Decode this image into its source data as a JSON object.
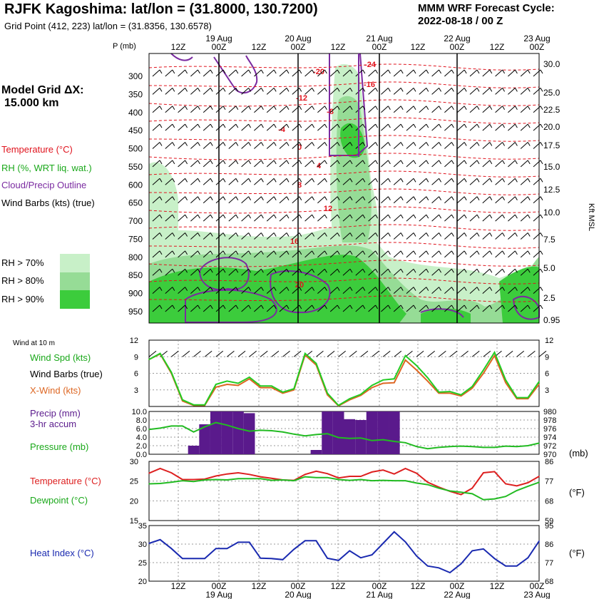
{
  "header": {
    "title": "RJFK Kagoshima:  lat/lon = (31.8000, 130.7200)",
    "subtitle": "Grid Point (412, 223) lat/lon = (31.8356, 130.6578)",
    "cycle_line1": "MMM WRF Forecast Cycle:",
    "cycle_line2": "2022-08-18 / 00  Z"
  },
  "left_panel": {
    "grid_label": "Model Grid ΔX:",
    "grid_value": "15.000 km",
    "legend": {
      "temperature": "Temperature (°C)",
      "rh": "RH (%, WRT liq. wat.)",
      "cloud": "Cloud/Precip Outline",
      "wind": "Wind Barbs (kts) (true)"
    },
    "rh_keys": [
      "RH > 70%",
      "RH > 80%",
      "RH > 90%"
    ],
    "colors": {
      "temperature": "#e0141e",
      "rh": "#1aa81a",
      "cloud": "#7a2aa0",
      "rh70": "#c8f0c8",
      "rh80": "#96dc96",
      "rh90": "#3ccc3c"
    }
  },
  "time_axis": {
    "top_days": [
      "19 Aug",
      "20 Aug",
      "21 Aug",
      "22 Aug",
      "23 Aug"
    ],
    "hours": [
      "12Z",
      "00Z",
      "12Z",
      "00Z",
      "12Z",
      "00Z",
      "12Z",
      "00Z",
      "12Z",
      "00Z"
    ],
    "bottom_days": [
      "19 Aug",
      "20 Aug",
      "21 Aug",
      "22 Aug",
      "23 Aug"
    ]
  },
  "chart_data": [
    {
      "type": "heatmap",
      "name": "upper-air cross section",
      "ylabel_left": "P (mb)",
      "pressure_levels": [
        300,
        350,
        400,
        450,
        500,
        550,
        600,
        650,
        700,
        750,
        800,
        850,
        900,
        950
      ],
      "ylabel_right": "Kft MSL",
      "height_ticks": [
        "30.0",
        "25.0",
        "22.5",
        "20.0",
        "17.5",
        "15.0",
        "12.5",
        "10.0",
        "7.5",
        "5.0",
        "2.5",
        "0.95"
      ],
      "isotherm_labels": [
        "-20",
        "-24",
        "-16",
        "-12",
        "-8",
        "-4",
        "0",
        "4",
        "8",
        "12",
        "16",
        "20"
      ],
      "grid": true
    },
    {
      "type": "line",
      "name": "wind",
      "title": "Wind at 10 m",
      "legend": [
        "Wind Spd (kts)",
        "Wind Barbs (true)",
        "X-Wind (kts)"
      ],
      "ylim": [
        0,
        12
      ],
      "y_ticks": [
        "12",
        "9",
        "6",
        "3"
      ],
      "series": [
        {
          "name": "Wind Spd (kts)",
          "color": "#22cc22",
          "values": [
            8.5,
            9.6,
            6.2,
            1.2,
            0.3,
            0.3,
            4,
            4.6,
            4.2,
            5.3,
            3.7,
            3.7,
            2.6,
            3.2,
            9.6,
            7.8,
            2.4,
            0.2,
            1.4,
            2.2,
            3.8,
            4.8,
            5,
            9.2,
            7.4,
            5.2,
            2.6,
            2.7,
            2.1,
            3.6,
            6.6,
            9.8,
            4.8,
            1.6,
            1.6,
            4.5
          ]
        },
        {
          "name": "X-Wind (kts)",
          "color": "#dd6622",
          "values": [
            8.5,
            9.5,
            6,
            1,
            0.2,
            0.2,
            3.5,
            4,
            3.8,
            5,
            3.4,
            3.4,
            2.4,
            3,
            9.3,
            7.5,
            2.1,
            0.1,
            1.2,
            2,
            3.4,
            4.2,
            4.3,
            8.4,
            6.6,
            4.6,
            2.4,
            2.4,
            1.9,
            3.3,
            6,
            9.2,
            4.3,
            1.4,
            1.4,
            4
          ]
        }
      ]
    },
    {
      "type": "bar",
      "name": "precip and pressure",
      "legend": [
        "Precip (mm)",
        "3-hr accum",
        "Pressure (mb)"
      ],
      "ylim": [
        0,
        10
      ],
      "y_ticks_left": [
        "10.0",
        "8.0",
        "6.0",
        "4.0",
        "2.0",
        "0.0"
      ],
      "y_ticks_right": [
        "980",
        "978",
        "976",
        "974",
        "972",
        "970"
      ],
      "right_unit": "(mb)",
      "precip": [
        0,
        0,
        0,
        0,
        2,
        7,
        10,
        10,
        10,
        9.6,
        0,
        0,
        0,
        0,
        0,
        1,
        10,
        10,
        8.2,
        8,
        10,
        10,
        10,
        0,
        0,
        0,
        0,
        0,
        0,
        0,
        0,
        0,
        0,
        0,
        0,
        0
      ],
      "precip_color": "#5a1a8c",
      "pressure": [
        975.8,
        976.1,
        976.6,
        976.6,
        975.2,
        976.4,
        977.4,
        976.8,
        976.0,
        975.4,
        975.6,
        975.5,
        975.2,
        974.7,
        974.3,
        974.6,
        974.8,
        973.9,
        973.7,
        973.8,
        973.2,
        973.4,
        973.0,
        972.7,
        971.8,
        971.3,
        971.6,
        971.8,
        971.9,
        971.8,
        971.6,
        971.6,
        971.9,
        971.8,
        972.0,
        972.6
      ]
    },
    {
      "type": "line",
      "name": "temperature and dewpoint",
      "legend": [
        "Temperature (°C)",
        "Dewpoint (°C)"
      ],
      "ylim": [
        15,
        30
      ],
      "y_ticks_left": [
        "30",
        "25",
        "20",
        "15"
      ],
      "y_ticks_right": [
        "86",
        "77",
        "68",
        "59"
      ],
      "right_unit": "(°F)",
      "series": [
        {
          "name": "Temperature (°C)",
          "color": "#dd2020",
          "values": [
            27,
            28.2,
            27.1,
            25.4,
            25.4,
            25.5,
            26.3,
            26.8,
            27.1,
            26.7,
            26.1,
            25.7,
            25.3,
            25.2,
            26.7,
            27.5,
            26.9,
            25.8,
            26.2,
            26.2,
            27.3,
            27.8,
            26.8,
            28.2,
            27,
            24.7,
            23.5,
            22.4,
            21.6,
            23.2,
            27.1,
            27.4,
            24.3,
            23.8,
            24.6,
            26.2
          ]
        },
        {
          "name": "Dewpoint (°C)",
          "color": "#22bb22",
          "values": [
            24.3,
            24.4,
            24.7,
            25.1,
            24.9,
            25.3,
            25.4,
            25.3,
            25.6,
            25.6,
            25.6,
            25.2,
            25.3,
            25.1,
            26.1,
            25.9,
            25.9,
            25.4,
            25.2,
            25.4,
            25.1,
            25.2,
            25.1,
            25.1,
            24.5,
            24.1,
            23.2,
            22.5,
            22.2,
            21.8,
            20.3,
            20.5,
            21.1,
            22.6,
            23.7,
            24.7
          ]
        }
      ]
    },
    {
      "type": "line",
      "name": "heat index",
      "legend": [
        "Heat Index (°C)"
      ],
      "ylim": [
        20,
        35
      ],
      "y_ticks_left": [
        "35",
        "30",
        "25",
        "20"
      ],
      "y_ticks_right": [
        "95",
        "86",
        "77",
        "68"
      ],
      "right_unit": "(°F)",
      "series": [
        {
          "name": "Heat Index (°C)",
          "color": "#1a2ab0",
          "values": [
            30.2,
            31.2,
            28.8,
            26.1,
            26.1,
            26.1,
            28.8,
            28.8,
            30.5,
            30.5,
            26.2,
            26.1,
            25.8,
            28.6,
            30.9,
            30.9,
            26.2,
            25.6,
            28.2,
            26.3,
            27.1,
            30.2,
            33.3,
            30.6,
            26.8,
            24.1,
            23.6,
            22.3,
            24.7,
            28.2,
            28.7,
            26.1,
            24.1,
            24.1,
            26.3,
            30.8
          ]
        }
      ]
    }
  ]
}
